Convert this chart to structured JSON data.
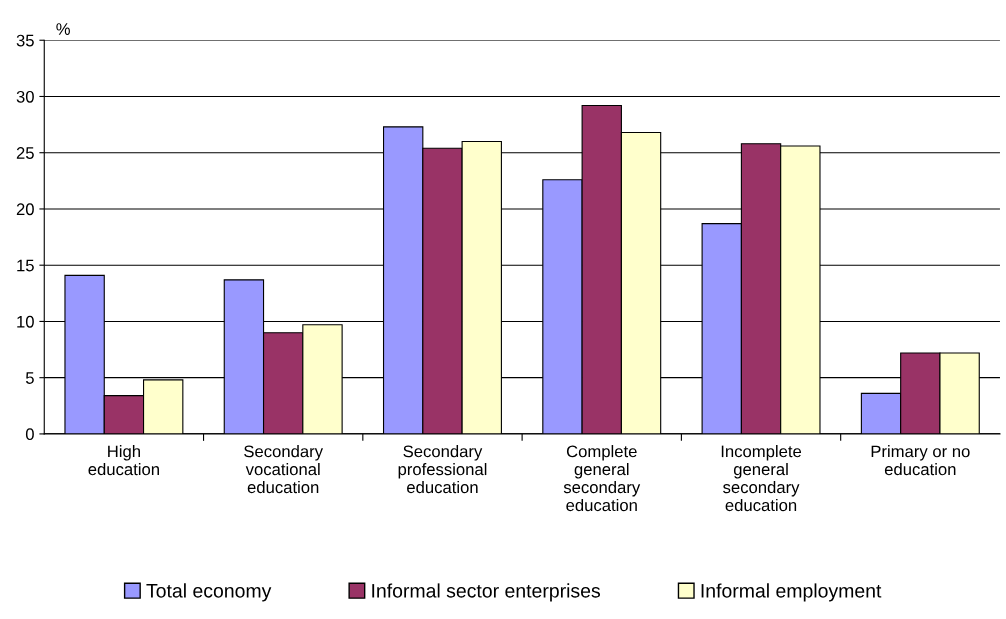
{
  "chart_data": {
    "type": "bar",
    "ylabel": "%",
    "categories": [
      "High education",
      "Secondary vocational education",
      "Secondary professional education",
      "Complete general secondary education",
      "Incomplete general secondary education",
      "Primary or no education"
    ],
    "series": [
      {
        "name": "Total economy",
        "color": "#9999ff",
        "values": [
          14.1,
          13.7,
          27.3,
          22.6,
          18.7,
          3.6
        ]
      },
      {
        "name": "Informal sector enterprises",
        "color": "#993366",
        "values": [
          3.4,
          9.0,
          25.4,
          29.2,
          25.8,
          7.2
        ]
      },
      {
        "name": "Informal employment",
        "color": "#ffffcc",
        "values": [
          4.8,
          9.7,
          26.0,
          26.8,
          25.6,
          7.2
        ]
      }
    ],
    "ylim": [
      0,
      35
    ],
    "yticks": [
      0,
      5,
      10,
      15,
      20,
      25,
      30,
      35
    ],
    "grid": "y",
    "legend": "bottom"
  }
}
